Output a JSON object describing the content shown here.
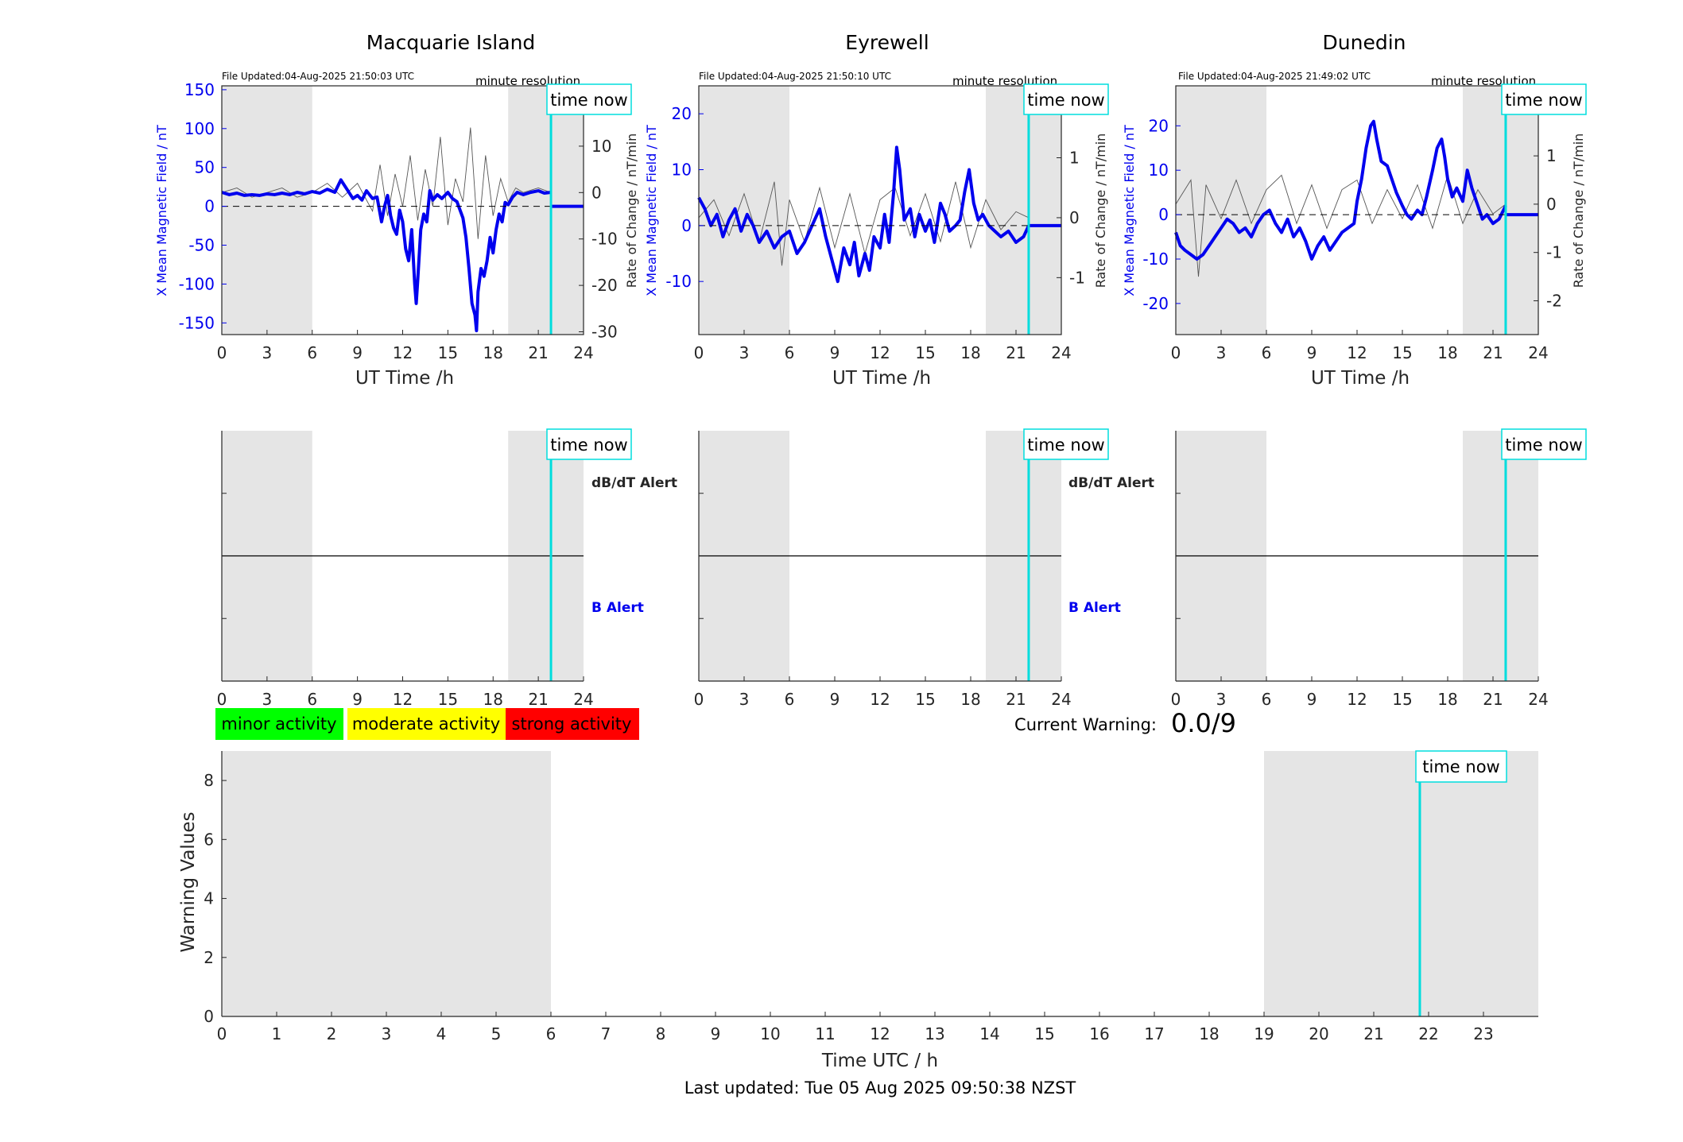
{
  "colors": {
    "shade": "#e5e5e5",
    "blue": "#0000ee",
    "cyan": "#00dddd",
    "axis": "#262626",
    "minor": "#00ff00",
    "moderate": "#ffff00",
    "strong": "#ff0000"
  },
  "common": {
    "xlabel": "UT Time /h",
    "left_ylabel": "X Mean Magnetic Field / nT",
    "right_ylabel": "Rate of Change / nT/min",
    "resolution": "minute resolution",
    "time_now": "time now",
    "dbdt_alert": "dB/dT Alert",
    "b_alert": "B Alert"
  },
  "chart_data": [
    {
      "type": "line",
      "title": "Macquarie Island",
      "updated": "File Updated:04-Aug-2025 21:50:03 UTC",
      "xlim": [
        0,
        24
      ],
      "xticks": [
        0,
        3,
        6,
        9,
        12,
        15,
        18,
        21,
        24
      ],
      "ylim": [
        -165,
        155
      ],
      "yticks": [
        -150,
        -100,
        -50,
        0,
        50,
        100,
        150
      ],
      "y2lim": [
        -30.6,
        23
      ],
      "y2ticks": [
        -30,
        -20,
        -10,
        0,
        10,
        20
      ],
      "shaded": [
        [
          0,
          6
        ],
        [
          19,
          24
        ]
      ],
      "now": 21.84,
      "series": [
        {
          "axis": "left",
          "x": [
            0,
            0.5,
            1,
            1.5,
            2,
            2.5,
            3,
            3.5,
            4,
            4.5,
            5,
            5.5,
            6,
            6.5,
            7,
            7.5,
            7.9,
            8.3,
            8.7,
            9,
            9.3,
            9.6,
            10,
            10.3,
            10.6,
            10.8,
            11,
            11.2,
            11.4,
            11.6,
            11.8,
            12,
            12.2,
            12.4,
            12.6,
            12.8,
            12.9,
            13,
            13.2,
            13.4,
            13.6,
            13.8,
            14,
            14.3,
            14.6,
            15,
            15.3,
            15.6,
            16,
            16.2,
            16.4,
            16.6,
            16.8,
            16.9,
            17,
            17.2,
            17.4,
            17.6,
            17.8,
            18,
            18.2,
            18.4,
            18.6,
            18.8,
            19,
            19.3,
            19.6,
            20,
            20.5,
            21,
            21.4,
            21.84
          ],
          "y": [
            18,
            15,
            17,
            14,
            15,
            14,
            16,
            15,
            17,
            15,
            18,
            16,
            19,
            17,
            22,
            18,
            34,
            22,
            10,
            14,
            8,
            20,
            10,
            12,
            -20,
            0,
            14,
            -12,
            -28,
            -36,
            -5,
            -20,
            -55,
            -70,
            -30,
            -100,
            -125,
            -95,
            -30,
            -10,
            -20,
            20,
            8,
            15,
            10,
            18,
            10,
            6,
            -15,
            -40,
            -80,
            -125,
            -140,
            -160,
            -110,
            -80,
            -90,
            -70,
            -40,
            -60,
            -30,
            -10,
            -20,
            5,
            2,
            12,
            18,
            15,
            18,
            20,
            17,
            18
          ]
        },
        {
          "axis": "right",
          "x": [
            0,
            1,
            2,
            3,
            4,
            5,
            6,
            7,
            8,
            9,
            10,
            10.5,
            11,
            11.5,
            12,
            12.5,
            13,
            13.5,
            14,
            14.5,
            15,
            15.5,
            16,
            16.5,
            17,
            17.5,
            18,
            18.5,
            19,
            19.5,
            20,
            21,
            21.84
          ],
          "y": [
            0,
            1,
            -1,
            0,
            1,
            -1,
            0,
            2,
            -1,
            2,
            -4,
            6,
            -5,
            4,
            -3,
            8,
            -6,
            5,
            -3,
            12,
            -7,
            3,
            -2,
            14,
            -10,
            8,
            -5,
            3,
            -2,
            1,
            0,
            1,
            0
          ]
        }
      ]
    },
    {
      "type": "line",
      "title": "Eyrewell",
      "updated": "File Updated:04-Aug-2025 21:50:10 UTC",
      "xlim": [
        0,
        24
      ],
      "xticks": [
        0,
        3,
        6,
        9,
        12,
        15,
        18,
        21,
        24
      ],
      "ylim": [
        -19.5,
        25
      ],
      "yticks": [
        -10,
        0,
        10,
        20
      ],
      "y2lim": [
        -1.95,
        2.2
      ],
      "y2ticks": [
        -1,
        0,
        1,
        2
      ],
      "shaded": [
        [
          0,
          6
        ],
        [
          19,
          24
        ]
      ],
      "now": 21.84,
      "series": [
        {
          "axis": "left",
          "x": [
            0,
            0.4,
            0.8,
            1.2,
            1.6,
            2,
            2.4,
            2.8,
            3.2,
            3.6,
            4,
            4.5,
            5,
            5.5,
            6,
            6.5,
            7,
            7.5,
            8,
            8.4,
            8.8,
            9.2,
            9.6,
            10,
            10.3,
            10.6,
            11,
            11.3,
            11.6,
            12,
            12.3,
            12.6,
            12.9,
            13.1,
            13.3,
            13.6,
            14,
            14.3,
            14.6,
            15,
            15.3,
            15.6,
            16,
            16.3,
            16.6,
            17,
            17.3,
            17.6,
            17.9,
            18.2,
            18.5,
            18.8,
            19.2,
            19.6,
            20,
            20.5,
            21,
            21.5,
            21.84
          ],
          "y": [
            5,
            3,
            0,
            2,
            -2,
            1,
            3,
            -1,
            2,
            0,
            -3,
            -1,
            -4,
            -2,
            -1,
            -5,
            -3,
            0,
            3,
            -2,
            -6,
            -10,
            -4,
            -7,
            -3,
            -9,
            -5,
            -8,
            -2,
            -4,
            2,
            -3,
            6,
            14,
            10,
            1,
            3,
            -2,
            2,
            -1,
            1,
            -3,
            4,
            2,
            -1,
            0,
            1,
            6,
            10,
            4,
            1,
            2,
            0,
            -1,
            -2,
            -1,
            -3,
            -2,
            0
          ]
        },
        {
          "axis": "right",
          "x": [
            0,
            1,
            2,
            3,
            4,
            5,
            5.5,
            6,
            7,
            8,
            9,
            10,
            11,
            12,
            13,
            14,
            15,
            16,
            17,
            18,
            19,
            20,
            21,
            21.84
          ],
          "y": [
            0,
            0.3,
            -0.3,
            0.4,
            -0.4,
            0.6,
            -0.8,
            0.3,
            -0.4,
            0.5,
            -0.5,
            0.4,
            -0.6,
            0.3,
            0.5,
            -0.3,
            0.4,
            -0.4,
            0.6,
            -0.5,
            0.3,
            -0.2,
            0.1,
            0
          ]
        }
      ]
    },
    {
      "type": "line",
      "title": "Dunedin",
      "updated": "File Updated:04-Aug-2025 21:49:02 UTC",
      "xlim": [
        0,
        24
      ],
      "xticks": [
        0,
        3,
        6,
        9,
        12,
        15,
        18,
        21,
        24
      ],
      "ylim": [
        -27,
        29
      ],
      "yticks": [
        -20,
        -10,
        0,
        10,
        20
      ],
      "y2lim": [
        -2.7,
        2.45
      ],
      "y2ticks": [
        -2,
        -1,
        0,
        1,
        2
      ],
      "shaded": [
        [
          0,
          6
        ],
        [
          19,
          24
        ]
      ],
      "now": 21.84,
      "series": [
        {
          "axis": "left",
          "x": [
            0,
            0.3,
            0.6,
            1,
            1.4,
            1.8,
            2.2,
            2.6,
            3,
            3.4,
            3.8,
            4.2,
            4.6,
            5,
            5.4,
            5.8,
            6.2,
            6.6,
            7,
            7.4,
            7.8,
            8.2,
            8.6,
            9,
            9.4,
            9.8,
            10.2,
            10.6,
            11,
            11.4,
            11.8,
            12,
            12.3,
            12.6,
            12.9,
            13.1,
            13.3,
            13.6,
            14,
            14.3,
            14.6,
            15,
            15.3,
            15.6,
            16,
            16.3,
            16.6,
            17,
            17.3,
            17.6,
            17.8,
            18,
            18.3,
            18.6,
            19,
            19.3,
            19.6,
            20,
            20.3,
            20.6,
            21,
            21.4,
            21.84
          ],
          "y": [
            -4,
            -7,
            -8,
            -9,
            -10,
            -9,
            -7,
            -5,
            -3,
            -1,
            -2,
            -4,
            -3,
            -5,
            -2,
            0,
            1,
            -2,
            -4,
            -1,
            -5,
            -3,
            -6,
            -10,
            -7,
            -5,
            -8,
            -6,
            -4,
            -3,
            -2,
            3,
            8,
            15,
            20,
            21,
            17,
            12,
            11,
            8,
            5,
            2,
            0,
            -1,
            1,
            0,
            4,
            10,
            15,
            17,
            13,
            8,
            4,
            6,
            3,
            10,
            6,
            2,
            -1,
            0,
            -2,
            -1,
            2
          ]
        },
        {
          "axis": "right",
          "x": [
            0,
            1,
            1.5,
            2,
            3,
            4,
            5,
            6,
            7,
            8,
            9,
            10,
            11,
            12,
            13,
            14,
            15,
            16,
            17,
            18,
            19,
            20,
            21,
            21.84
          ],
          "y": [
            0,
            0.5,
            -1.5,
            0.4,
            -0.3,
            0.5,
            -0.4,
            0.3,
            0.6,
            -0.4,
            0.4,
            -0.5,
            0.3,
            0.5,
            -0.4,
            0.3,
            -0.3,
            0.4,
            -0.5,
            0.6,
            -0.4,
            0.3,
            -0.2,
            0
          ]
        }
      ]
    }
  ],
  "alerts": {
    "xticks": [
      0,
      3,
      6,
      9,
      12,
      15,
      18,
      21,
      24
    ],
    "shaded": [
      [
        0,
        6
      ],
      [
        19,
        24
      ]
    ],
    "now": 21.84
  },
  "legend": {
    "minor": "minor activity",
    "moderate": "moderate activity",
    "strong": "strong activity"
  },
  "current_warning": {
    "label": "Current Warning:",
    "value": "0.0/9"
  },
  "warning_chart": {
    "type": "bar",
    "xlabel": "Time UTC / h",
    "ylabel": "Warning Values",
    "xlim": [
      0,
      24
    ],
    "xticks": [
      0,
      1,
      2,
      3,
      4,
      5,
      6,
      7,
      8,
      9,
      10,
      11,
      12,
      13,
      14,
      15,
      16,
      17,
      18,
      19,
      20,
      21,
      22,
      23
    ],
    "ylim": [
      0,
      9
    ],
    "yticks": [
      0,
      2,
      4,
      6,
      8
    ],
    "shaded": [
      [
        0,
        6
      ],
      [
        19,
        24
      ]
    ],
    "now": 21.84,
    "time_now": "time now"
  },
  "footer": "Last updated: Tue 05 Aug 2025 09:50:38 NZST"
}
